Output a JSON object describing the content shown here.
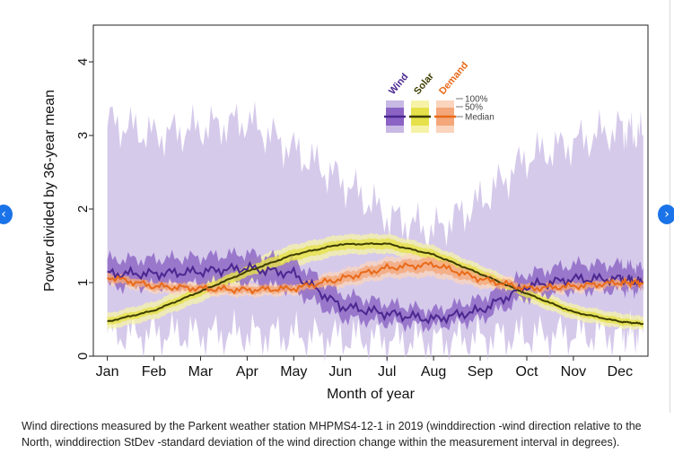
{
  "nav": {
    "prev_icon": "chevron-left-icon",
    "prev_glyph": "‹",
    "next_icon": "chevron-right-icon",
    "next_glyph": "›",
    "color": "#1a73e8"
  },
  "caption": "Wind directions measured by the Parkent weather station MHPMS4-12-1 in 2019 (winddirection -wind direction relative to the North, winddirection StDev -standard deviation of the wind direction change within the measurement interval in degrees).",
  "chart_data": {
    "type": "line",
    "ylabel": "Power divided by 36-year mean",
    "xlabel": "Month of year",
    "categories": [
      "Jan",
      "Feb",
      "Mar",
      "Apr",
      "May",
      "Jun",
      "Jul",
      "Aug",
      "Sep",
      "Oct",
      "Nov",
      "Dec"
    ],
    "yticks": [
      "0",
      "1",
      "2",
      "3",
      "4"
    ],
    "ylim": [
      0,
      4.5
    ],
    "x": [
      1,
      2,
      3,
      4,
      5,
      6,
      7,
      8,
      9,
      10,
      11,
      12,
      12.5
    ],
    "legend": {
      "position": "top-right",
      "band_labels": [
        "100%",
        "50%",
        "Median"
      ]
    },
    "series": [
      {
        "name": "Wind",
        "color": "#4b2790",
        "band50_color": "#8a63c4",
        "band100_color": "#c8b8e4",
        "median": [
          1.12,
          1.12,
          1.15,
          1.2,
          1.12,
          0.68,
          0.58,
          0.5,
          0.62,
          0.95,
          1.05,
          1.05,
          1.0
        ],
        "p50_low": [
          0.95,
          0.95,
          0.98,
          1.0,
          0.9,
          0.52,
          0.45,
          0.4,
          0.5,
          0.8,
          0.9,
          0.9,
          0.88
        ],
        "p50_high": [
          1.32,
          1.32,
          1.35,
          1.4,
          1.3,
          0.85,
          0.72,
          0.62,
          0.78,
          1.12,
          1.25,
          1.25,
          1.2
        ],
        "p100_low": [
          0.3,
          0.3,
          0.3,
          0.3,
          0.28,
          0.25,
          0.22,
          0.2,
          0.25,
          0.28,
          0.3,
          0.3,
          0.3
        ],
        "p100_high": [
          3.2,
          3.0,
          3.1,
          3.2,
          2.8,
          2.4,
          1.9,
          1.7,
          2.1,
          2.7,
          2.9,
          3.1,
          3.0
        ]
      },
      {
        "name": "Solar",
        "color": "#3c3c00",
        "band50_color": "#e6e14a",
        "band100_color": "#f6f3a8",
        "median": [
          0.47,
          0.62,
          0.88,
          1.15,
          1.38,
          1.52,
          1.53,
          1.38,
          1.12,
          0.85,
          0.6,
          0.47,
          0.44
        ],
        "p50_low": [
          0.42,
          0.57,
          0.82,
          1.08,
          1.3,
          1.45,
          1.46,
          1.32,
          1.06,
          0.8,
          0.56,
          0.42,
          0.4
        ],
        "p50_high": [
          0.52,
          0.67,
          0.94,
          1.22,
          1.45,
          1.58,
          1.6,
          1.44,
          1.18,
          0.9,
          0.65,
          0.52,
          0.48
        ],
        "p100_low": [
          0.36,
          0.5,
          0.74,
          1.0,
          1.22,
          1.38,
          1.4,
          1.26,
          1.0,
          0.74,
          0.5,
          0.38,
          0.36
        ],
        "p100_high": [
          0.58,
          0.74,
          1.02,
          1.3,
          1.52,
          1.65,
          1.66,
          1.5,
          1.24,
          0.96,
          0.7,
          0.58,
          0.54
        ]
      },
      {
        "name": "Demand",
        "color": "#e86a1a",
        "band50_color": "#f4a77a",
        "band100_color": "#fad4bc",
        "median": [
          1.08,
          0.95,
          0.92,
          0.9,
          0.92,
          1.05,
          1.2,
          1.25,
          1.05,
          0.92,
          0.95,
          1.0,
          1.0
        ],
        "p50_low": [
          1.02,
          0.9,
          0.87,
          0.85,
          0.87,
          0.98,
          1.12,
          1.15,
          0.98,
          0.87,
          0.9,
          0.95,
          0.95
        ],
        "p50_high": [
          1.14,
          1.0,
          0.97,
          0.95,
          0.97,
          1.12,
          1.28,
          1.34,
          1.12,
          0.97,
          1.0,
          1.05,
          1.05
        ],
        "p100_low": [
          0.98,
          0.86,
          0.83,
          0.81,
          0.83,
          0.93,
          1.06,
          1.08,
          0.93,
          0.83,
          0.86,
          0.91,
          0.91
        ],
        "p100_high": [
          1.18,
          1.04,
          1.01,
          0.99,
          1.01,
          1.17,
          1.34,
          1.42,
          1.17,
          1.01,
          1.04,
          1.09,
          1.09
        ]
      }
    ]
  }
}
